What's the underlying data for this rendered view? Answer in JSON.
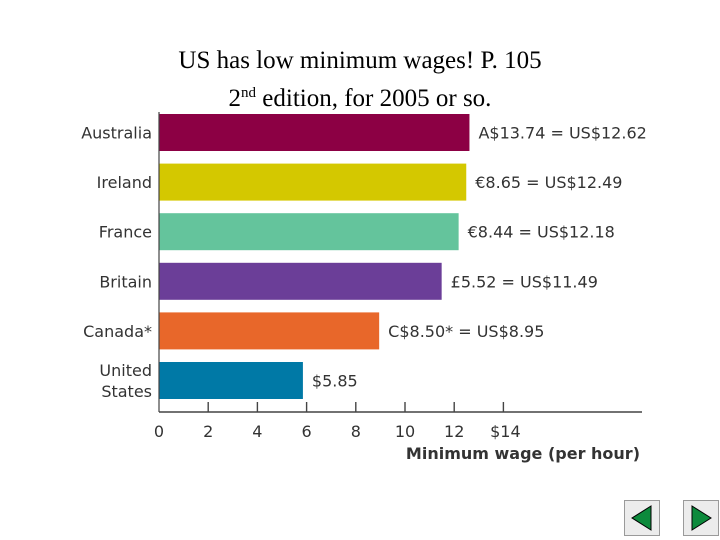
{
  "title": {
    "line1": "US has low minimum wages! P. 105",
    "line2_num": "2",
    "line2_sup": "nd",
    "line2_rest": " edition, for 2005 or so."
  },
  "nav": {
    "prev_icon": "triangle-left-icon",
    "next_icon": "triangle-right-icon",
    "icon_color": "#0d8a3c"
  },
  "chart_data": {
    "type": "bar",
    "orientation": "horizontal",
    "categories": [
      "Australia",
      "Ireland",
      "France",
      "Britain",
      "Canada*",
      "United States"
    ],
    "values": [
      12.62,
      12.49,
      12.18,
      11.49,
      8.95,
      5.85
    ],
    "data_labels": [
      "A$13.74 = US$12.62",
      "€8.65 = US$12.49",
      "€8.44 = US$12.18",
      "£5.52 = US$11.49",
      "C$8.50* = US$8.95",
      "$5.85"
    ],
    "colors": [
      "#8c0044",
      "#d4c800",
      "#64c49c",
      "#6b3e98",
      "#e8672a",
      "#0079a6"
    ],
    "xlabel": "Minimum wage (per hour)",
    "xticks": [
      "0",
      "2",
      "4",
      "6",
      "8",
      "10",
      "12",
      "$14"
    ],
    "xlim": [
      0,
      14
    ],
    "grid": false,
    "legend": "none"
  }
}
